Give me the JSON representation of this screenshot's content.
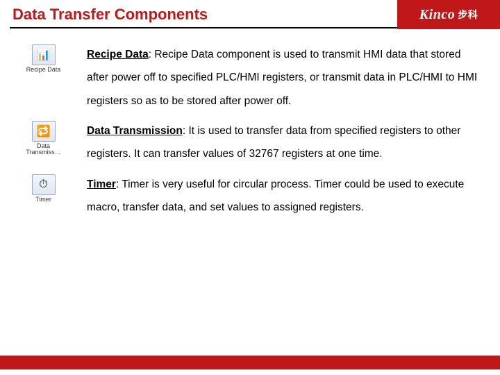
{
  "colors": {
    "accent": "#c01818",
    "text": "#000000",
    "background": "#ffffff"
  },
  "header": {
    "title": "Data Transfer Components",
    "logo_main": "Kinco",
    "logo_sub": "步科"
  },
  "items": [
    {
      "icon_label": "Recipe Data",
      "icon_glyph": "📊",
      "lead": "Recipe Data",
      "body": ": Recipe Data component is used to transmit HMI data that stored after power off to specified PLC/HMI registers, or transmit data in PLC/HMI to HMI registers so as to be stored after power off."
    },
    {
      "icon_label": "Data\nTransmiss…",
      "icon_glyph": "🔁",
      "lead": "Data Transmission",
      "body": ": It is used to transfer data from specified registers to other registers. It can transfer values of 32767 registers at one time."
    },
    {
      "icon_label": "Timer",
      "icon_glyph": "⏱",
      "lead": "Timer",
      "body": ": Timer is very useful for circular process. Timer could be used to execute macro, transfer data, and set values to assigned registers."
    }
  ]
}
